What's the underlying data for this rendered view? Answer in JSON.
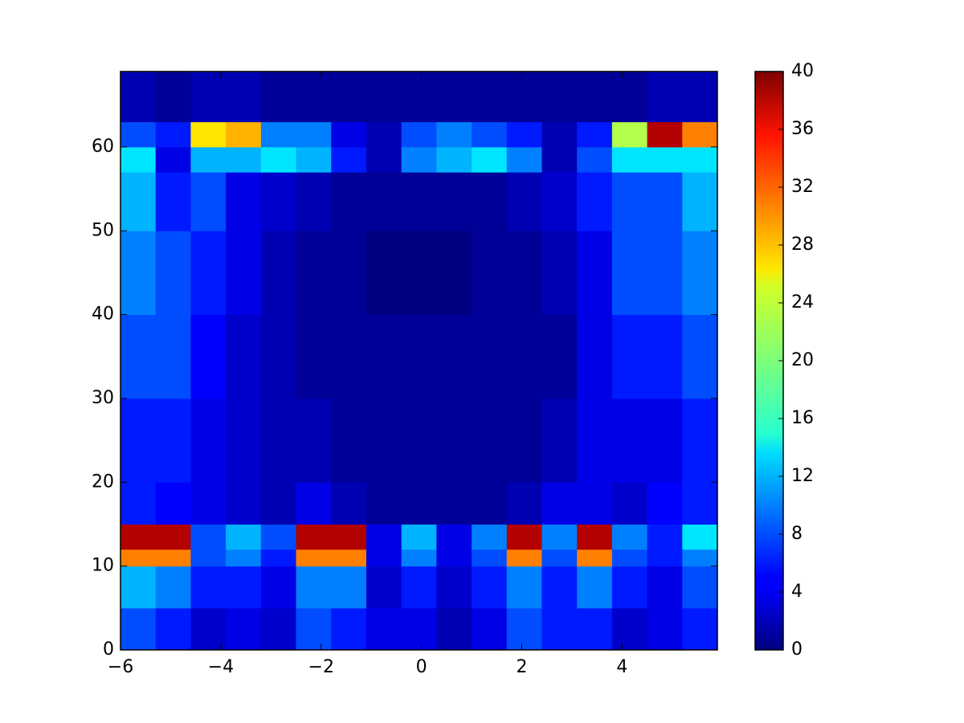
{
  "chart_data": {
    "type": "heatmap",
    "colormap": "jet",
    "xlim": [
      -6,
      5.9
    ],
    "ylim": [
      0,
      69
    ],
    "xticks": [
      -6,
      -4,
      -2,
      0,
      2,
      4
    ],
    "yticks": [
      0,
      10,
      20,
      30,
      40,
      50,
      60
    ],
    "xbins": [
      -6,
      -5.3,
      -4.6,
      -3.9,
      -3.2,
      -2.5,
      -1.8,
      -1.1,
      -0.4,
      0.3,
      1.0,
      1.7,
      2.4,
      3.1,
      3.8,
      4.5,
      5.2,
      5.9
    ],
    "ybins": [
      0,
      5,
      10,
      12,
      15,
      20,
      30,
      40,
      50,
      57,
      60,
      63,
      69
    ],
    "z": [
      [
        8,
        6,
        3,
        4,
        3,
        8,
        6,
        4,
        4,
        2,
        4,
        8,
        6,
        6,
        3,
        4,
        6
      ],
      [
        12,
        10,
        6,
        6,
        4,
        10,
        10,
        3,
        6,
        3,
        6,
        10,
        6,
        10,
        6,
        4,
        8
      ],
      [
        30,
        30,
        8,
        10,
        6,
        30,
        30,
        4,
        10,
        4,
        8,
        30,
        8,
        30,
        8,
        6,
        10
      ],
      [
        38,
        38,
        8,
        12,
        8,
        38,
        38,
        4,
        12,
        4,
        10,
        38,
        10,
        38,
        10,
        6,
        14
      ],
      [
        6,
        5,
        4,
        3,
        2,
        4,
        2,
        1,
        1,
        1,
        1,
        2,
        4,
        4,
        3,
        5,
        6
      ],
      [
        6,
        6,
        4,
        3,
        2,
        2,
        1,
        1,
        1,
        1,
        1,
        1,
        2,
        4,
        4,
        4,
        6
      ],
      [
        8,
        8,
        5,
        3,
        2,
        1,
        1,
        1,
        1,
        1,
        1,
        1,
        1,
        4,
        6,
        6,
        8
      ],
      [
        10,
        8,
        6,
        4,
        2,
        1,
        1,
        0,
        0,
        0,
        1,
        1,
        2,
        4,
        8,
        8,
        10
      ],
      [
        12,
        6,
        8,
        4,
        3,
        2,
        1,
        1,
        1,
        1,
        1,
        2,
        3,
        6,
        8,
        8,
        12
      ],
      [
        14,
        4,
        12,
        12,
        14,
        12,
        6,
        2,
        10,
        12,
        14,
        10,
        2,
        8,
        14,
        14,
        14
      ],
      [
        8,
        6,
        26,
        28,
        10,
        10,
        4,
        2,
        8,
        10,
        8,
        6,
        2,
        6,
        22,
        38,
        30
      ],
      [
        2,
        1,
        2,
        2,
        1,
        1,
        1,
        1,
        1,
        1,
        1,
        1,
        1,
        1,
        1,
        2,
        2
      ]
    ],
    "colorbar": {
      "lim": [
        0,
        40
      ],
      "ticks": [
        0,
        4,
        8,
        12,
        16,
        20,
        24,
        28,
        32,
        36,
        40
      ]
    }
  }
}
